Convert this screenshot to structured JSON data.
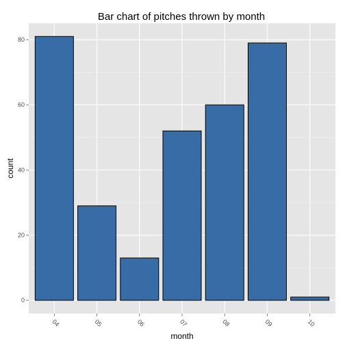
{
  "chart_data": {
    "type": "bar",
    "title": "Bar chart of pitches thrown by month",
    "xlabel": "month",
    "ylabel": "count",
    "categories": [
      "04",
      "05",
      "06",
      "07",
      "08",
      "09",
      "10"
    ],
    "values": [
      81,
      29,
      13,
      52,
      60,
      79,
      1
    ],
    "yticks": [
      0,
      20,
      40,
      60,
      80
    ],
    "ylim": [
      -4.05,
      85.05
    ],
    "grid": true,
    "x_tick_rotation_deg": 45
  },
  "colors": {
    "panel_background": "#e5e5e5",
    "grid_major": "#ffffff",
    "grid_minor": "#f2f2f2",
    "bar_fill": "#386ca7",
    "bar_outline": "#000000",
    "tick_text": "#4d4d4d"
  }
}
